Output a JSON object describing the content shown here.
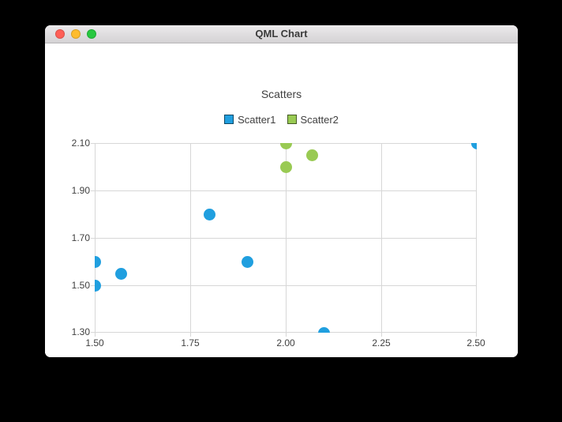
{
  "window": {
    "title": "QML Chart",
    "traffic_lights": {
      "close_color": "#ff5f57",
      "minimize_color": "#febc2e",
      "zoom_color": "#28c840"
    }
  },
  "chart": {
    "title": "Scatters",
    "legend": [
      {
        "label": "Scatter1",
        "color": "#209fdf"
      },
      {
        "label": "Scatter2",
        "color": "#99ca53"
      }
    ]
  },
  "chart_data": {
    "type": "scatter",
    "title": "Scatters",
    "series": [
      {
        "name": "Scatter1",
        "color": "#209fdf",
        "marker_size": 15,
        "points": [
          [
            1.5,
            1.5
          ],
          [
            1.5,
            1.6
          ],
          [
            1.57,
            1.55
          ],
          [
            1.8,
            1.8
          ],
          [
            1.9,
            1.6
          ],
          [
            2.1,
            1.3
          ],
          [
            2.5,
            2.1
          ]
        ]
      },
      {
        "name": "Scatter2",
        "color": "#99ca53",
        "marker_size": 15,
        "points": [
          [
            2.0,
            2.0
          ],
          [
            2.0,
            2.1
          ],
          [
            2.07,
            2.05
          ]
        ]
      }
    ],
    "xlim": [
      1.5,
      2.5
    ],
    "ylim": [
      1.3,
      2.1
    ],
    "x_ticks": [
      1.5,
      1.75,
      2.0,
      2.25,
      2.5
    ],
    "y_ticks": [
      1.3,
      1.5,
      1.7,
      1.9,
      2.1
    ],
    "x_tick_labels": [
      "1.50",
      "1.75",
      "2.00",
      "2.25",
      "2.50"
    ],
    "y_tick_labels": [
      "1.30",
      "1.50",
      "1.70",
      "1.90",
      "2.10"
    ],
    "grid": true,
    "legend_position": "top"
  }
}
